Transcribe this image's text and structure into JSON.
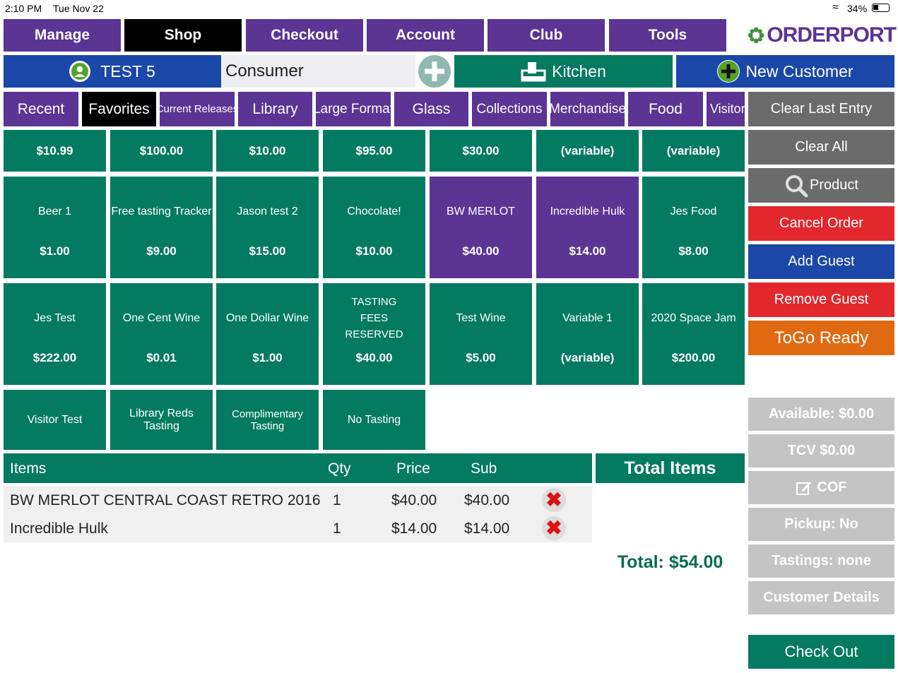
{
  "status": {
    "time": "2:10 PM",
    "date": "Tue Nov 22",
    "battery": "34%"
  },
  "nav": [
    "Manage",
    "Shop",
    "Checkout",
    "Account",
    "Club",
    "Tools"
  ],
  "brand": {
    "name": "ORDERPORT"
  },
  "customer": {
    "name": "TEST 5",
    "type": "Consumer",
    "kitchen": "Kitchen",
    "new_customer": "New Customer"
  },
  "categories": [
    "Recent",
    "Favorites",
    "Current Releases",
    "Library",
    "Large Format",
    "Glass",
    "Collections",
    "Merchandise",
    "Food",
    "Visitor T"
  ],
  "quick_prices": [
    "$10.99",
    "$100.00",
    "$10.00",
    "$95.00",
    "$30.00",
    "(variable)",
    "(variable)"
  ],
  "products": [
    {
      "name": "Beer 1",
      "price": "$1.00"
    },
    {
      "name": "Free tasting Tracker",
      "price": "$9.00"
    },
    {
      "name": "Jason test 2",
      "price": "$15.00"
    },
    {
      "name": "Chocolate!",
      "price": "$10.00"
    },
    {
      "name": "BW MERLOT",
      "price": "$40.00"
    },
    {
      "name": "Incredible Hulk",
      "price": "$14.00"
    },
    {
      "name": "Jes Food",
      "price": "$8.00"
    },
    {
      "name": "Jes Test",
      "price": "$222.00"
    },
    {
      "name": "One Cent Wine",
      "price": "$0.01"
    },
    {
      "name": "One Dollar Wine",
      "price": "$1.00"
    },
    {
      "name": "TASTING FEES RESERVED",
      "price": "$40.00"
    },
    {
      "name": "Test Wine",
      "price": "$5.00"
    },
    {
      "name": "Variable 1",
      "price": "(variable)"
    },
    {
      "name": "2020 Space Jam",
      "price": "$200.00"
    }
  ],
  "tastings": [
    "Visitor Test",
    "Library Reds Tasting",
    "Complimentary Tasting",
    "No Tasting"
  ],
  "side_buttons": [
    "Clear Last Entry",
    "Clear All",
    "Product",
    "Cancel Order",
    "Add Guest",
    "Remove Guest",
    "ToGo Ready"
  ],
  "info_buttons": [
    "Available: $0.00",
    "TCV $0.00",
    "COF",
    "Pickup: No",
    "Tastings: none",
    "Customer Details"
  ],
  "order": {
    "headers": {
      "items": "Items",
      "qty": "Qty",
      "price": "Price",
      "sub": "Sub"
    },
    "lines": [
      {
        "item": "BW MERLOT CENTRAL COAST RETRO 2016",
        "qty": "1",
        "price": "$40.00",
        "sub": "$40.00"
      },
      {
        "item": "Incredible Hulk",
        "qty": "1",
        "price": "$14.00",
        "sub": "$14.00"
      }
    ],
    "total_items_label": "Total Items",
    "total": "Total: $54.00"
  },
  "checkout": "Check Out",
  "colors": {
    "purple": "#5b3494",
    "teal": "#047a61",
    "blue": "#1a47a8",
    "red": "#e2282d",
    "orange": "#e06a12",
    "gray": "#6b6b6b",
    "light_gray": "#c4c4c4"
  }
}
